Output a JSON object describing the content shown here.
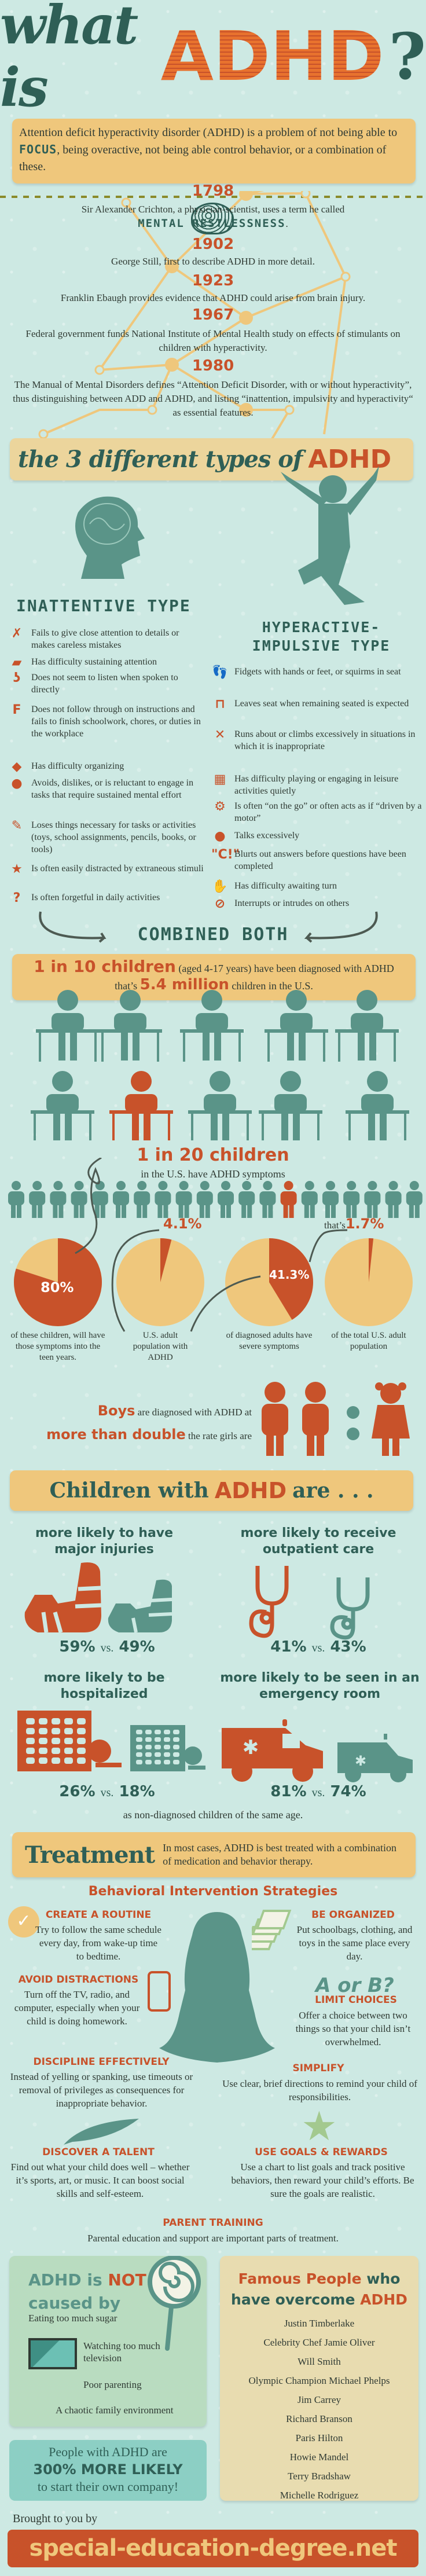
{
  "title": {
    "what_is": "what is",
    "adhd": "ADHD",
    "question": "?"
  },
  "intro": {
    "before": "Attention deficit hyperactivity disorder (ADHD) is a problem of not being able to ",
    "focus": "FOCUS",
    "after": ", being overactive, not being able control behavior, or a combination of these."
  },
  "timeline": [
    {
      "year": "1798",
      "text": "Sir Alexander Crichton, a physician-scientist, uses a term he called",
      "highlight": "MENTAL RESTLESSNESS",
      "after": "."
    },
    {
      "year": "1902",
      "text": "George Still, first to describe ADHD in more detail."
    },
    {
      "year": "1923",
      "text": "Franklin Ebaugh provides evidence that ADHD could arise from brain injury."
    },
    {
      "year": "1967",
      "text": "Federal government funds National Institute of Mental Health study on effects of stimulants on children with hyperactivity."
    },
    {
      "year": "1980",
      "text": "The Manual of Mental Disorders defines “Attention Deficit Disorder, with or without hyperactivity”, thus distinguishing between ADD and ADHD, and listing “inattention, impulsivity and hyperactivity“ as essential features."
    }
  ],
  "types": {
    "heading_pre": "the 3 different types of",
    "heading_adhd": "ADHD",
    "inattentive": {
      "title": "INATTENTIVE TYPE",
      "items": [
        {
          "icon": "x-mark-icon",
          "glyph": "✗",
          "text": "Fails to give close attention to details or makes careless mistakes"
        },
        {
          "icon": "sleeping-student-icon",
          "glyph": "▰",
          "text": "Has difficulty sustaining attention"
        },
        {
          "icon": "ear-icon",
          "glyph": "ʖ",
          "text": "Does not seem to listen when spoken to directly"
        },
        {
          "icon": "grade-f-icon",
          "glyph": "F",
          "text": "Does not follow through on instructions and fails to finish schoolwork, chores, or duties in the workplace"
        },
        {
          "icon": "book-icon",
          "glyph": "◆",
          "text": "Has difficulty organizing"
        },
        {
          "icon": "apple-icon",
          "glyph": "●",
          "text": "Avoids, dislikes, or is reluctant to engage in tasks that require sustained mental effort"
        },
        {
          "icon": "pencil-icon",
          "glyph": "✎",
          "text": "Loses things necessary for tasks or activities (toys, school assignments, pencils, books, or tools)"
        },
        {
          "icon": "star-icon",
          "glyph": "★",
          "text": "Is often easily distracted by extraneous stimuli"
        },
        {
          "icon": "question-mark-icon",
          "glyph": "?",
          "text": "Is often forgetful in daily activities"
        }
      ]
    },
    "hyperactive": {
      "title_1": "HYPERACTIVE-",
      "title_2": "IMPULSIVE TYPE",
      "items": [
        {
          "icon": "footprints-icon",
          "glyph": "👣",
          "text": "Fidgets with hands or feet, or squirms in seat"
        },
        {
          "icon": "school-desk-icon",
          "glyph": "⊓",
          "text": "Leaves seat when remaining seated is expected"
        },
        {
          "icon": "jumping-child-icon",
          "glyph": "✕",
          "text": "Runs about or climbs excessively in situations in which it is inappropriate"
        },
        {
          "icon": "checkerboard-icon",
          "glyph": "▦",
          "text": "Has difficulty playing or engaging in leisure activities quietly"
        },
        {
          "icon": "gears-icon",
          "glyph": "⚙",
          "text": "Is often “on the go” or often acts as if “driven by a motor”"
        },
        {
          "icon": "speech-bubble-icon",
          "glyph": "●",
          "text": "Talks excessively"
        },
        {
          "icon": "blurt-quote-icon",
          "glyph": "\"C!\"",
          "text": "Blurts out answers before questions have been completed"
        },
        {
          "icon": "raised-hand-icon",
          "glyph": "✋",
          "text": "Has difficulty awaiting turn"
        },
        {
          "icon": "no-entry-icon",
          "glyph": "⊘",
          "text": "Interrupts or intrudes on others"
        }
      ]
    },
    "combined": "COMBINED BOTH"
  },
  "prevalence": {
    "ratio": "1 in 10 children",
    "ages": "(aged 4-17 years) have been diagnosed with ADHD",
    "thats": "that’s",
    "million": "5.4 million",
    "suffix": "children in the U.S.",
    "classroom_highlight_index": 6,
    "ratio2": "1 in 20 children",
    "ratio2_sub": "in the U.S. have ADHD symptoms",
    "people_highlight_index": 13,
    "pies": [
      {
        "value": 80,
        "label": "80%",
        "caption": "of these children, will have those symptoms into the teen years."
      },
      {
        "value": 4.1,
        "label": "4.1%",
        "caption": "U.S. adult population with ADHD"
      },
      {
        "value": 41.3,
        "label": "41.3%",
        "caption": "of diagnosed adults have severe symptoms"
      },
      {
        "value": 1.7,
        "label": "1.7%",
        "prefix": "that’s",
        "caption": "of the total U.S. adult population"
      }
    ],
    "boys": "Boys",
    "boys_text": "are diagnosed with ADHD at",
    "double": "more than double",
    "double_text": "the rate girls are"
  },
  "children": {
    "heading_pre": "Children with",
    "heading_adhd": "ADHD",
    "heading_post": "are . . .",
    "stats": [
      {
        "title": "more likely to have major injuries",
        "a": "59%",
        "vs": "vs.",
        "b": "49%",
        "icon": "arm-cast-icon"
      },
      {
        "title": "more likely to receive outpatient care",
        "a": "41%",
        "vs": "vs.",
        "b": "43%",
        "icon": "stethoscope-icon"
      },
      {
        "title": "more likely to be hospitalized",
        "a": "26%",
        "vs": "vs.",
        "b": "18%",
        "icon": "hospital-icon"
      },
      {
        "title": "more likely to be seen in an emergency room",
        "a": "81%",
        "vs": "vs.",
        "b": "74%",
        "icon": "ambulance-icon"
      }
    ],
    "footnote": "as non-diagnosed children of the same age."
  },
  "treatment": {
    "title": "Treatment",
    "text": "In most cases, ADHD is best treated with a combination of medication and behavior therapy.",
    "strategies_title": "Behavioral Intervention Strategies",
    "strategies": [
      {
        "title": "CREATE A ROUTINE",
        "text": "Try to follow the same schedule every day, from wake-up time to bedtime."
      },
      {
        "title": "BE ORGANIZED",
        "text": "Put schoolbags, clothing, and toys in the same place every day."
      },
      {
        "title": "AVOID DISTRACTIONS",
        "text": "Turn off the TV, radio, and computer, especially when your child is doing homework."
      },
      {
        "title": "LIMIT CHOICES",
        "text": "Offer a choice between two things so that your child isn’t overwhelmed.",
        "badge": "A or B?"
      },
      {
        "title": "DISCIPLINE EFFECTIVELY",
        "text": "Instead of yelling or spanking, use timeouts or removal of privileges as consequences for inappropriate behavior."
      },
      {
        "title": "SIMPLIFY",
        "text": "Use clear, brief directions to remind your child of responsibilities."
      },
      {
        "title": "DISCOVER A TALENT",
        "text": "Find out what your child does well – whether it’s sports, art, or music. It can boost social skills and self-esteem."
      },
      {
        "title": "USE GOALS & REWARDS",
        "text": "Use a chart to list goals and track positive behaviors, then reward your child’s efforts. Be sure the goals are realistic."
      },
      {
        "title": "PARENT TRAINING",
        "text": "Parental education and support are important parts of treatment."
      }
    ]
  },
  "not_caused": {
    "adhd": "ADHD",
    "is": "is",
    "not": "NOT",
    "caused_by": "caused by",
    "items": [
      "Eating too much sugar",
      "Watching too much television",
      "Poor parenting",
      "A chaotic family environment"
    ]
  },
  "entrepreneur": {
    "line1": "People with ADHD are",
    "line2": "300% MORE LIKELY",
    "line3": "to start their own company!"
  },
  "famous": {
    "t1": "Famous People",
    "t2": "who",
    "t3": "have overcome",
    "t4": "ADHD",
    "people": [
      "Justin Timberlake",
      "Celebrity Chef Jamie Oliver",
      "Will Smith",
      "Olympic Champion Michael Phelps",
      "Jim Carrey",
      "Richard Branson",
      "Paris Hilton",
      "Howie Mandel",
      "Terry Bradshaw",
      "Michelle Rodriguez"
    ]
  },
  "footer": {
    "brought": "Brought to you by",
    "site": "special-education-degree.net"
  },
  "colors": {
    "orange": "#c8522a",
    "teal": "#5a9488",
    "dark_teal": "#2f5f56",
    "tan": "#efc77c",
    "background": "#cde9e3"
  }
}
